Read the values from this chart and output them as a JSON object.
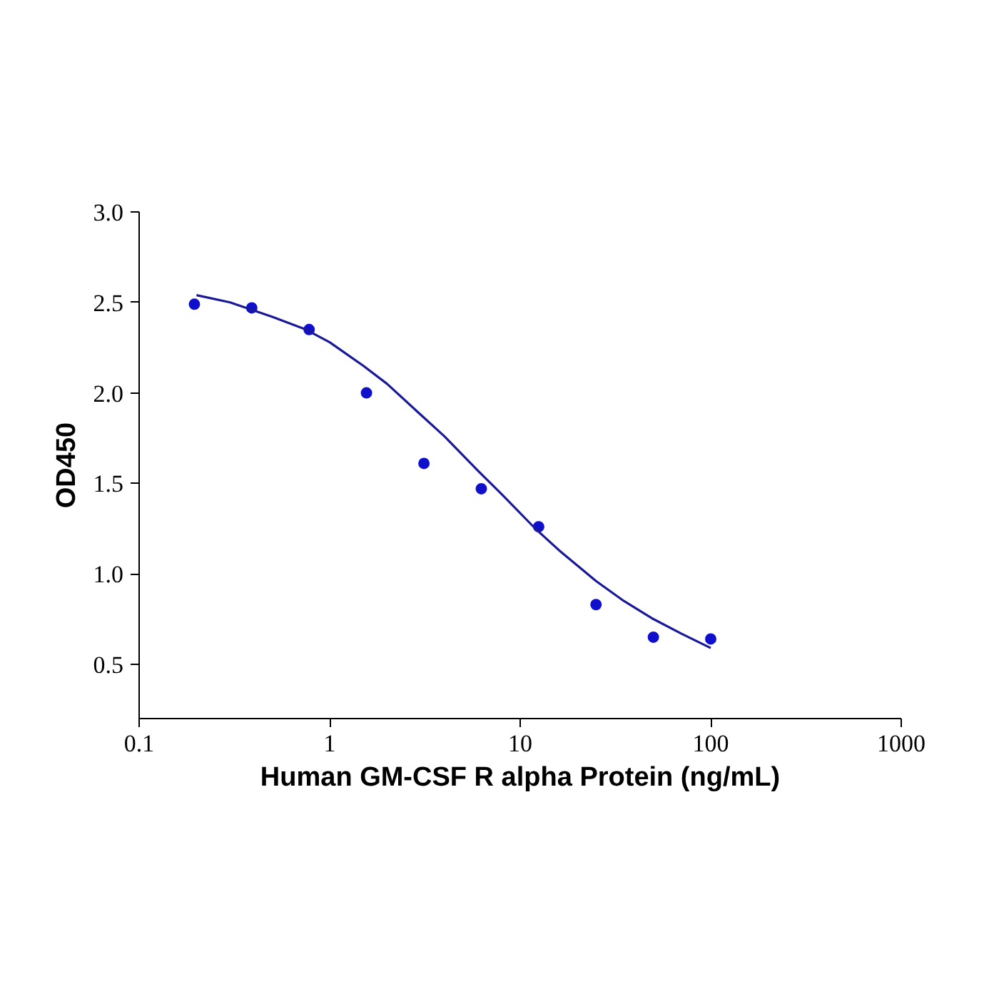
{
  "chart_data": {
    "type": "scatter",
    "xlabel": "Human GM-CSF R alpha Protein (ng/mL)",
    "ylabel": "OD450",
    "log": "x",
    "grid": false,
    "marker": "circle",
    "x": [
      0.195,
      0.39,
      0.78,
      1.56,
      3.125,
      6.25,
      12.5,
      25,
      50,
      100
    ],
    "series": [
      {
        "color": "#1010cc",
        "values": [
          2.49,
          2.47,
          2.35,
          2.0,
          1.61,
          1.47,
          1.26,
          0.83,
          0.65,
          0.64
        ]
      },
      {
        "type": "line",
        "color": "#1a1a99",
        "marker": "none",
        "line_style": "solid",
        "x": [
          0.2,
          0.3,
          0.5,
          0.75,
          1,
          1.5,
          2,
          3,
          4,
          6,
          8,
          12,
          16,
          25,
          35,
          50,
          70,
          100
        ],
        "values": [
          2.54,
          2.5,
          2.42,
          2.35,
          2.28,
          2.15,
          2.05,
          1.88,
          1.76,
          1.57,
          1.44,
          1.25,
          1.13,
          0.96,
          0.85,
          0.75,
          0.67,
          0.59
        ]
      }
    ],
    "xlim": [
      0.1,
      1000
    ],
    "xticks": [
      0.1,
      1,
      10,
      100,
      1000
    ],
    "ylim": [
      0.2,
      3.0
    ],
    "yticks": [
      {
        "value": 0.5,
        "label": "0.5"
      },
      {
        "value": 1,
        "label": "1.0"
      },
      {
        "value": 1.5,
        "label": "1.5"
      },
      {
        "value": 2,
        "label": "2.0"
      },
      {
        "value": 2.5,
        "label": "2.5"
      },
      {
        "value": 3,
        "label": "3.0"
      }
    ]
  }
}
